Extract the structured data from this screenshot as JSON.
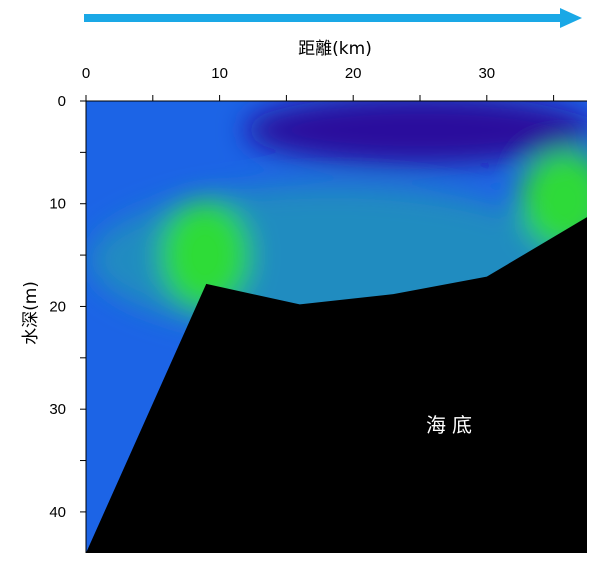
{
  "chart_data": {
    "type": "heatmap",
    "xlabel": "距離(km)",
    "ylabel": "水深(m)",
    "x_axis_position": "top",
    "y_axis_inverted": true,
    "xlim": [
      0,
      37.5
    ],
    "ylim": [
      0,
      44
    ],
    "x_ticks": [
      0,
      10,
      20,
      30
    ],
    "x_tick_labels": [
      "0",
      "10",
      "20",
      "30"
    ],
    "y_ticks": [
      0,
      10,
      20,
      30,
      40
    ],
    "y_tick_labels": [
      "0",
      "10",
      "20",
      "30",
      "40"
    ],
    "direction_arrow": {
      "color": "#1aa8e6",
      "points": "right"
    },
    "colors": {
      "deep_blue": "#2a0a9c",
      "blue": "#1c64e6",
      "teal": "#229ab4",
      "green": "#30e030",
      "seabed": "#000000"
    },
    "bottom_profile": [
      {
        "x": 0,
        "depth": 44
      },
      {
        "x": 9,
        "depth": 17.8
      },
      {
        "x": 16,
        "depth": 19.8
      },
      {
        "x": 23,
        "depth": 18.8
      },
      {
        "x": 30,
        "depth": 17.1
      },
      {
        "x": 37.5,
        "depth": 11.3
      }
    ],
    "features": [
      {
        "name": "low-value-surface-layer",
        "x_range": [
          12,
          37.5
        ],
        "depth_range": [
          0,
          6
        ]
      },
      {
        "name": "high-value-patch-west",
        "x": 9,
        "depth": 15
      },
      {
        "name": "high-value-patch-east",
        "x": 36,
        "depth": 10
      }
    ],
    "annotation": "海底"
  }
}
